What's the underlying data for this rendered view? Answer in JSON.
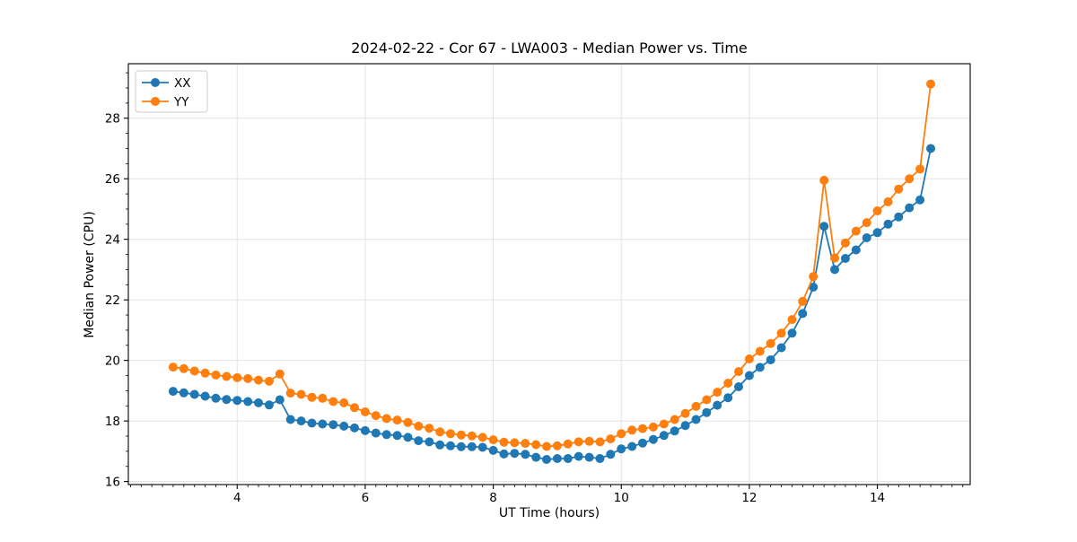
{
  "figure": {
    "title": "2024-02-22 - Cor 67 - LWA003 - Median Power vs. Time",
    "xlabel": "UT Time (hours)",
    "ylabel": "Median Power (CPU)"
  },
  "chart_data": {
    "type": "line",
    "title": "2024-02-22 - Cor 67 - LWA003 - Median Power vs. Time",
    "xlabel": "UT Time (hours)",
    "ylabel": "Median Power (CPU)",
    "xlim": [
      2.3,
      15.45
    ],
    "ylim": [
      15.9,
      29.8
    ],
    "xticks": [
      4,
      6,
      8,
      10,
      12,
      14
    ],
    "yticks": [
      16,
      18,
      20,
      22,
      24,
      26,
      28
    ],
    "x_minor_step": 0.16667,
    "y_minor_step": 0.5,
    "grid": true,
    "grid_color": "#e0e0e0",
    "legend_position": "upper left",
    "marker": "circle",
    "x": [
      3.0,
      3.167,
      3.333,
      3.5,
      3.667,
      3.833,
      4.0,
      4.167,
      4.333,
      4.5,
      4.667,
      4.833,
      5.0,
      5.167,
      5.333,
      5.5,
      5.667,
      5.833,
      6.0,
      6.167,
      6.333,
      6.5,
      6.667,
      6.833,
      7.0,
      7.167,
      7.333,
      7.5,
      7.667,
      7.833,
      8.0,
      8.167,
      8.333,
      8.5,
      8.667,
      8.833,
      9.0,
      9.167,
      9.333,
      9.5,
      9.667,
      9.833,
      10.0,
      10.167,
      10.333,
      10.5,
      10.667,
      10.833,
      11.0,
      11.167,
      11.333,
      11.5,
      11.667,
      11.833,
      12.0,
      12.167,
      12.333,
      12.5,
      12.667,
      12.833,
      13.0,
      13.167,
      13.333,
      13.5,
      13.667,
      13.833,
      14.0,
      14.167,
      14.333,
      14.5,
      14.667,
      14.833
    ],
    "series": [
      {
        "name": "XX",
        "color": "#1f77b4",
        "values": [
          18.98,
          18.93,
          18.88,
          18.82,
          18.75,
          18.71,
          18.68,
          18.64,
          18.6,
          18.53,
          18.7,
          18.05,
          18.0,
          17.93,
          17.9,
          17.88,
          17.83,
          17.77,
          17.68,
          17.6,
          17.55,
          17.52,
          17.46,
          17.35,
          17.31,
          17.21,
          17.18,
          17.15,
          17.15,
          17.13,
          17.03,
          16.91,
          16.93,
          16.9,
          16.8,
          16.73,
          16.76,
          16.76,
          16.83,
          16.8,
          16.76,
          16.9,
          17.08,
          17.16,
          17.27,
          17.39,
          17.52,
          17.67,
          17.85,
          18.05,
          18.28,
          18.52,
          18.77,
          19.13,
          19.5,
          19.77,
          20.02,
          20.42,
          20.9,
          21.55,
          22.42,
          24.43,
          23.0,
          23.37,
          23.65,
          24.05,
          24.22,
          24.5,
          24.74,
          25.04,
          25.3,
          27.0
        ]
      },
      {
        "name": "YY",
        "color": "#ff7f0e",
        "values": [
          19.78,
          19.73,
          19.65,
          19.58,
          19.52,
          19.47,
          19.43,
          19.4,
          19.35,
          19.31,
          19.55,
          18.92,
          18.88,
          18.78,
          18.75,
          18.64,
          18.6,
          18.44,
          18.3,
          18.18,
          18.08,
          18.03,
          17.95,
          17.83,
          17.76,
          17.64,
          17.58,
          17.54,
          17.51,
          17.46,
          17.38,
          17.3,
          17.28,
          17.26,
          17.22,
          17.16,
          17.18,
          17.24,
          17.31,
          17.33,
          17.31,
          17.41,
          17.58,
          17.7,
          17.75,
          17.8,
          17.9,
          18.05,
          18.25,
          18.48,
          18.7,
          18.95,
          19.25,
          19.63,
          20.05,
          20.3,
          20.56,
          20.9,
          21.35,
          21.95,
          22.77,
          25.95,
          23.38,
          23.88,
          24.27,
          24.55,
          24.94,
          25.24,
          25.66,
          26.0,
          26.32,
          29.13
        ]
      }
    ]
  }
}
